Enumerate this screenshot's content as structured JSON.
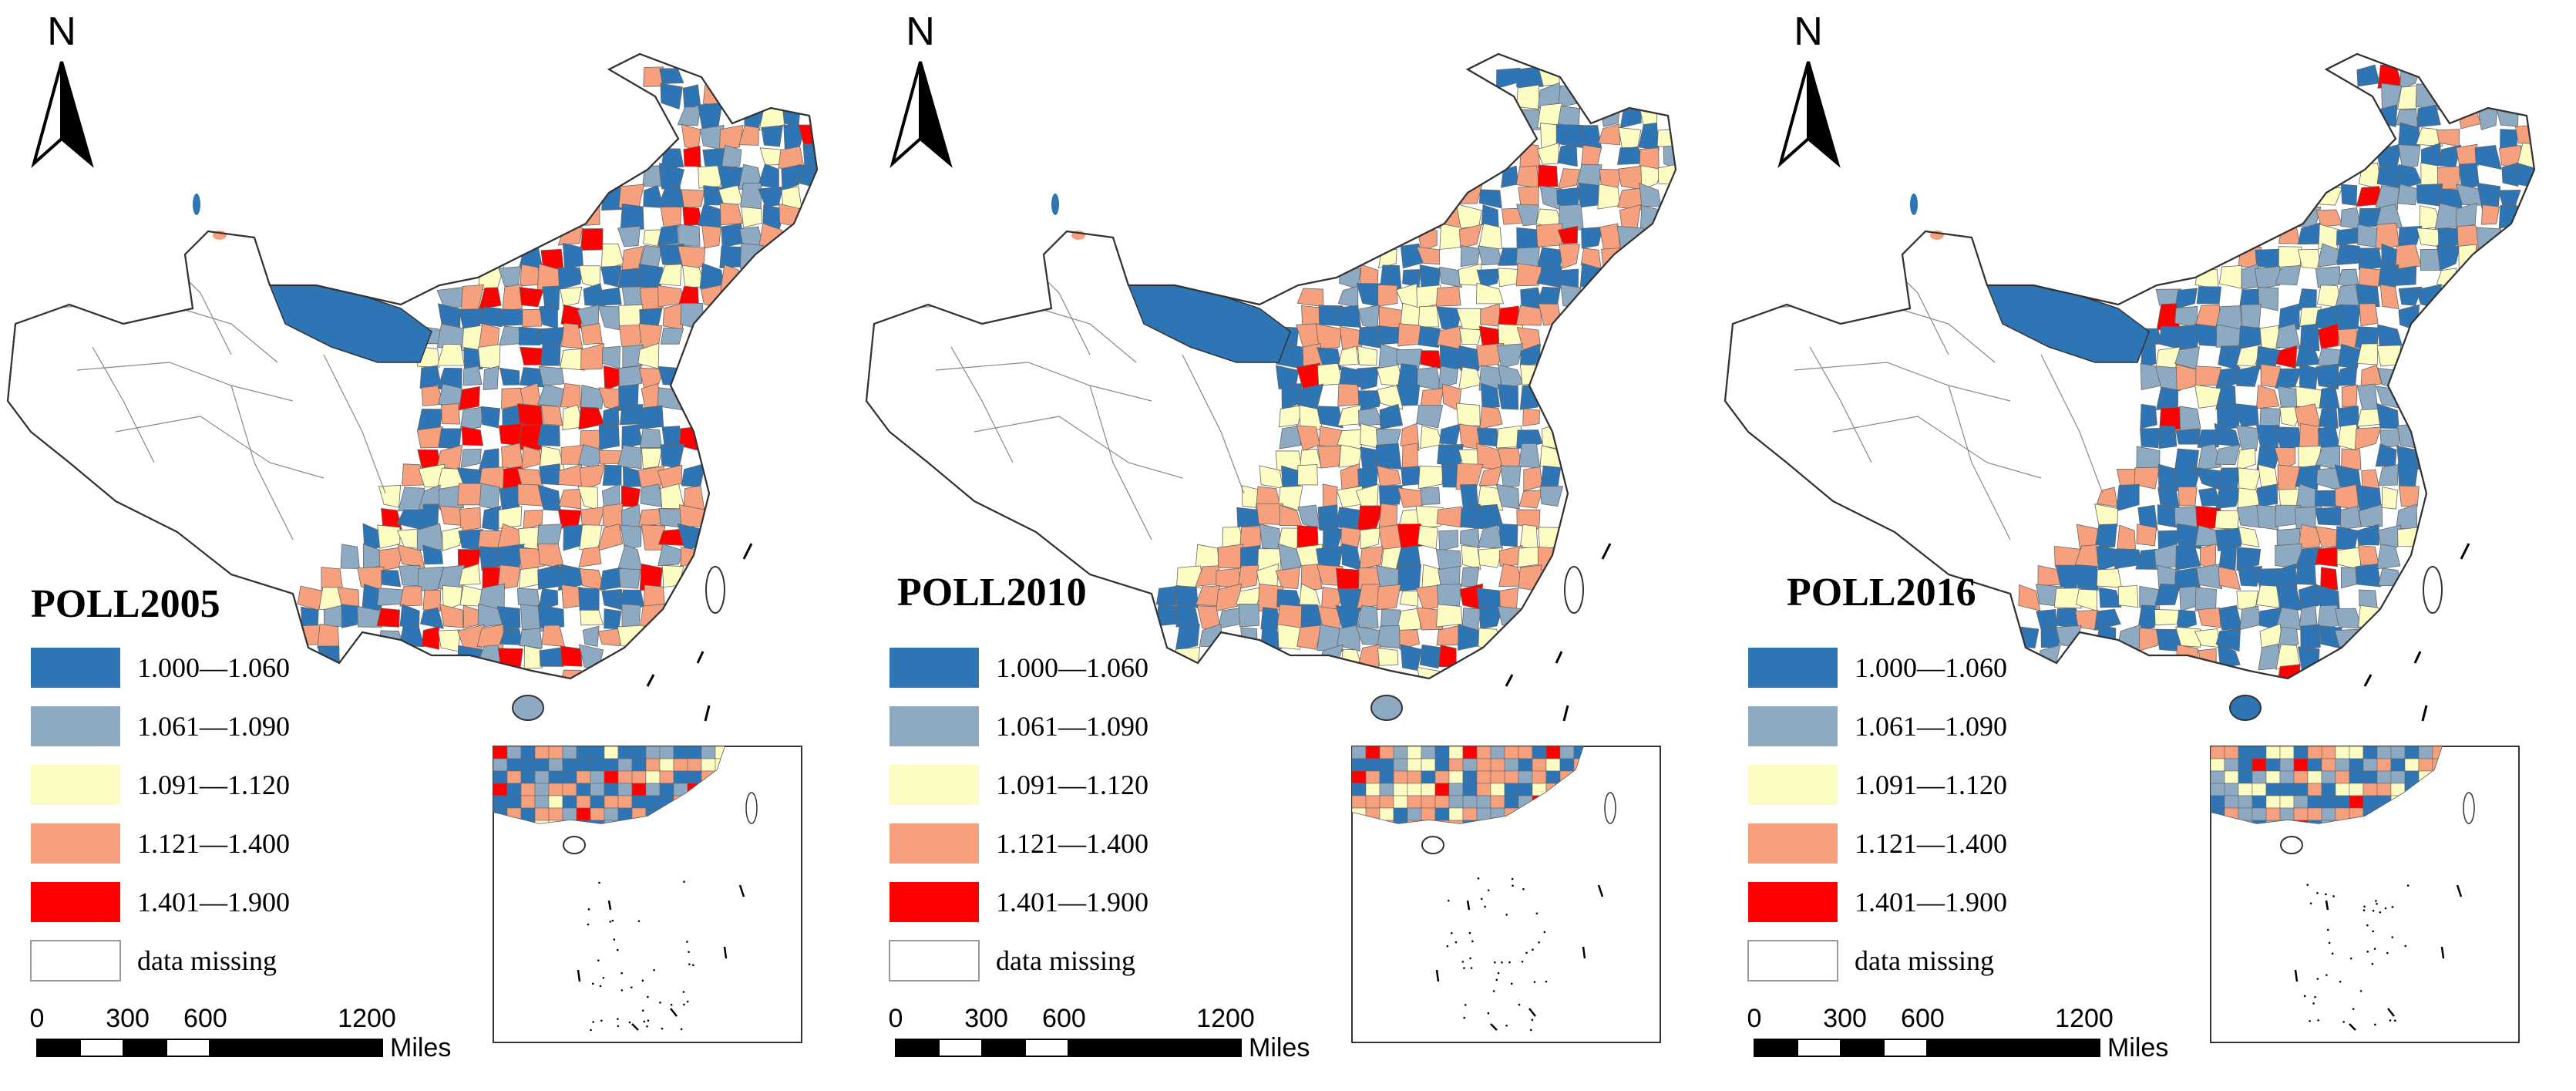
{
  "figure": {
    "panels": [
      {
        "title": "POLL2005",
        "north": "N",
        "seed": 2005,
        "weights": [
          0.3,
          0.2,
          0.12,
          0.28,
          0.1
        ]
      },
      {
        "title": "POLL2010",
        "north": "N",
        "seed": 2010,
        "weights": [
          0.26,
          0.18,
          0.22,
          0.27,
          0.07
        ]
      },
      {
        "title": "POLL2016",
        "north": "N",
        "seed": 2016,
        "weights": [
          0.4,
          0.23,
          0.13,
          0.2,
          0.04
        ]
      }
    ],
    "legend": [
      {
        "label": "1.000—1.060",
        "color": "#2e75b6"
      },
      {
        "label": "1.061—1.090",
        "color": "#8eaac2"
      },
      {
        "label": "1.091—1.120",
        "color": "#fdfdc3"
      },
      {
        "label": "1.121—1.400",
        "color": "#f7a07e"
      },
      {
        "label": "1.401—1.900",
        "color": "#ff0000"
      },
      {
        "label": "data missing",
        "color": "#ffffff"
      }
    ],
    "scale": {
      "ticks": [
        "0",
        "300",
        "600",
        "1200"
      ],
      "unit": "Miles"
    }
  }
}
